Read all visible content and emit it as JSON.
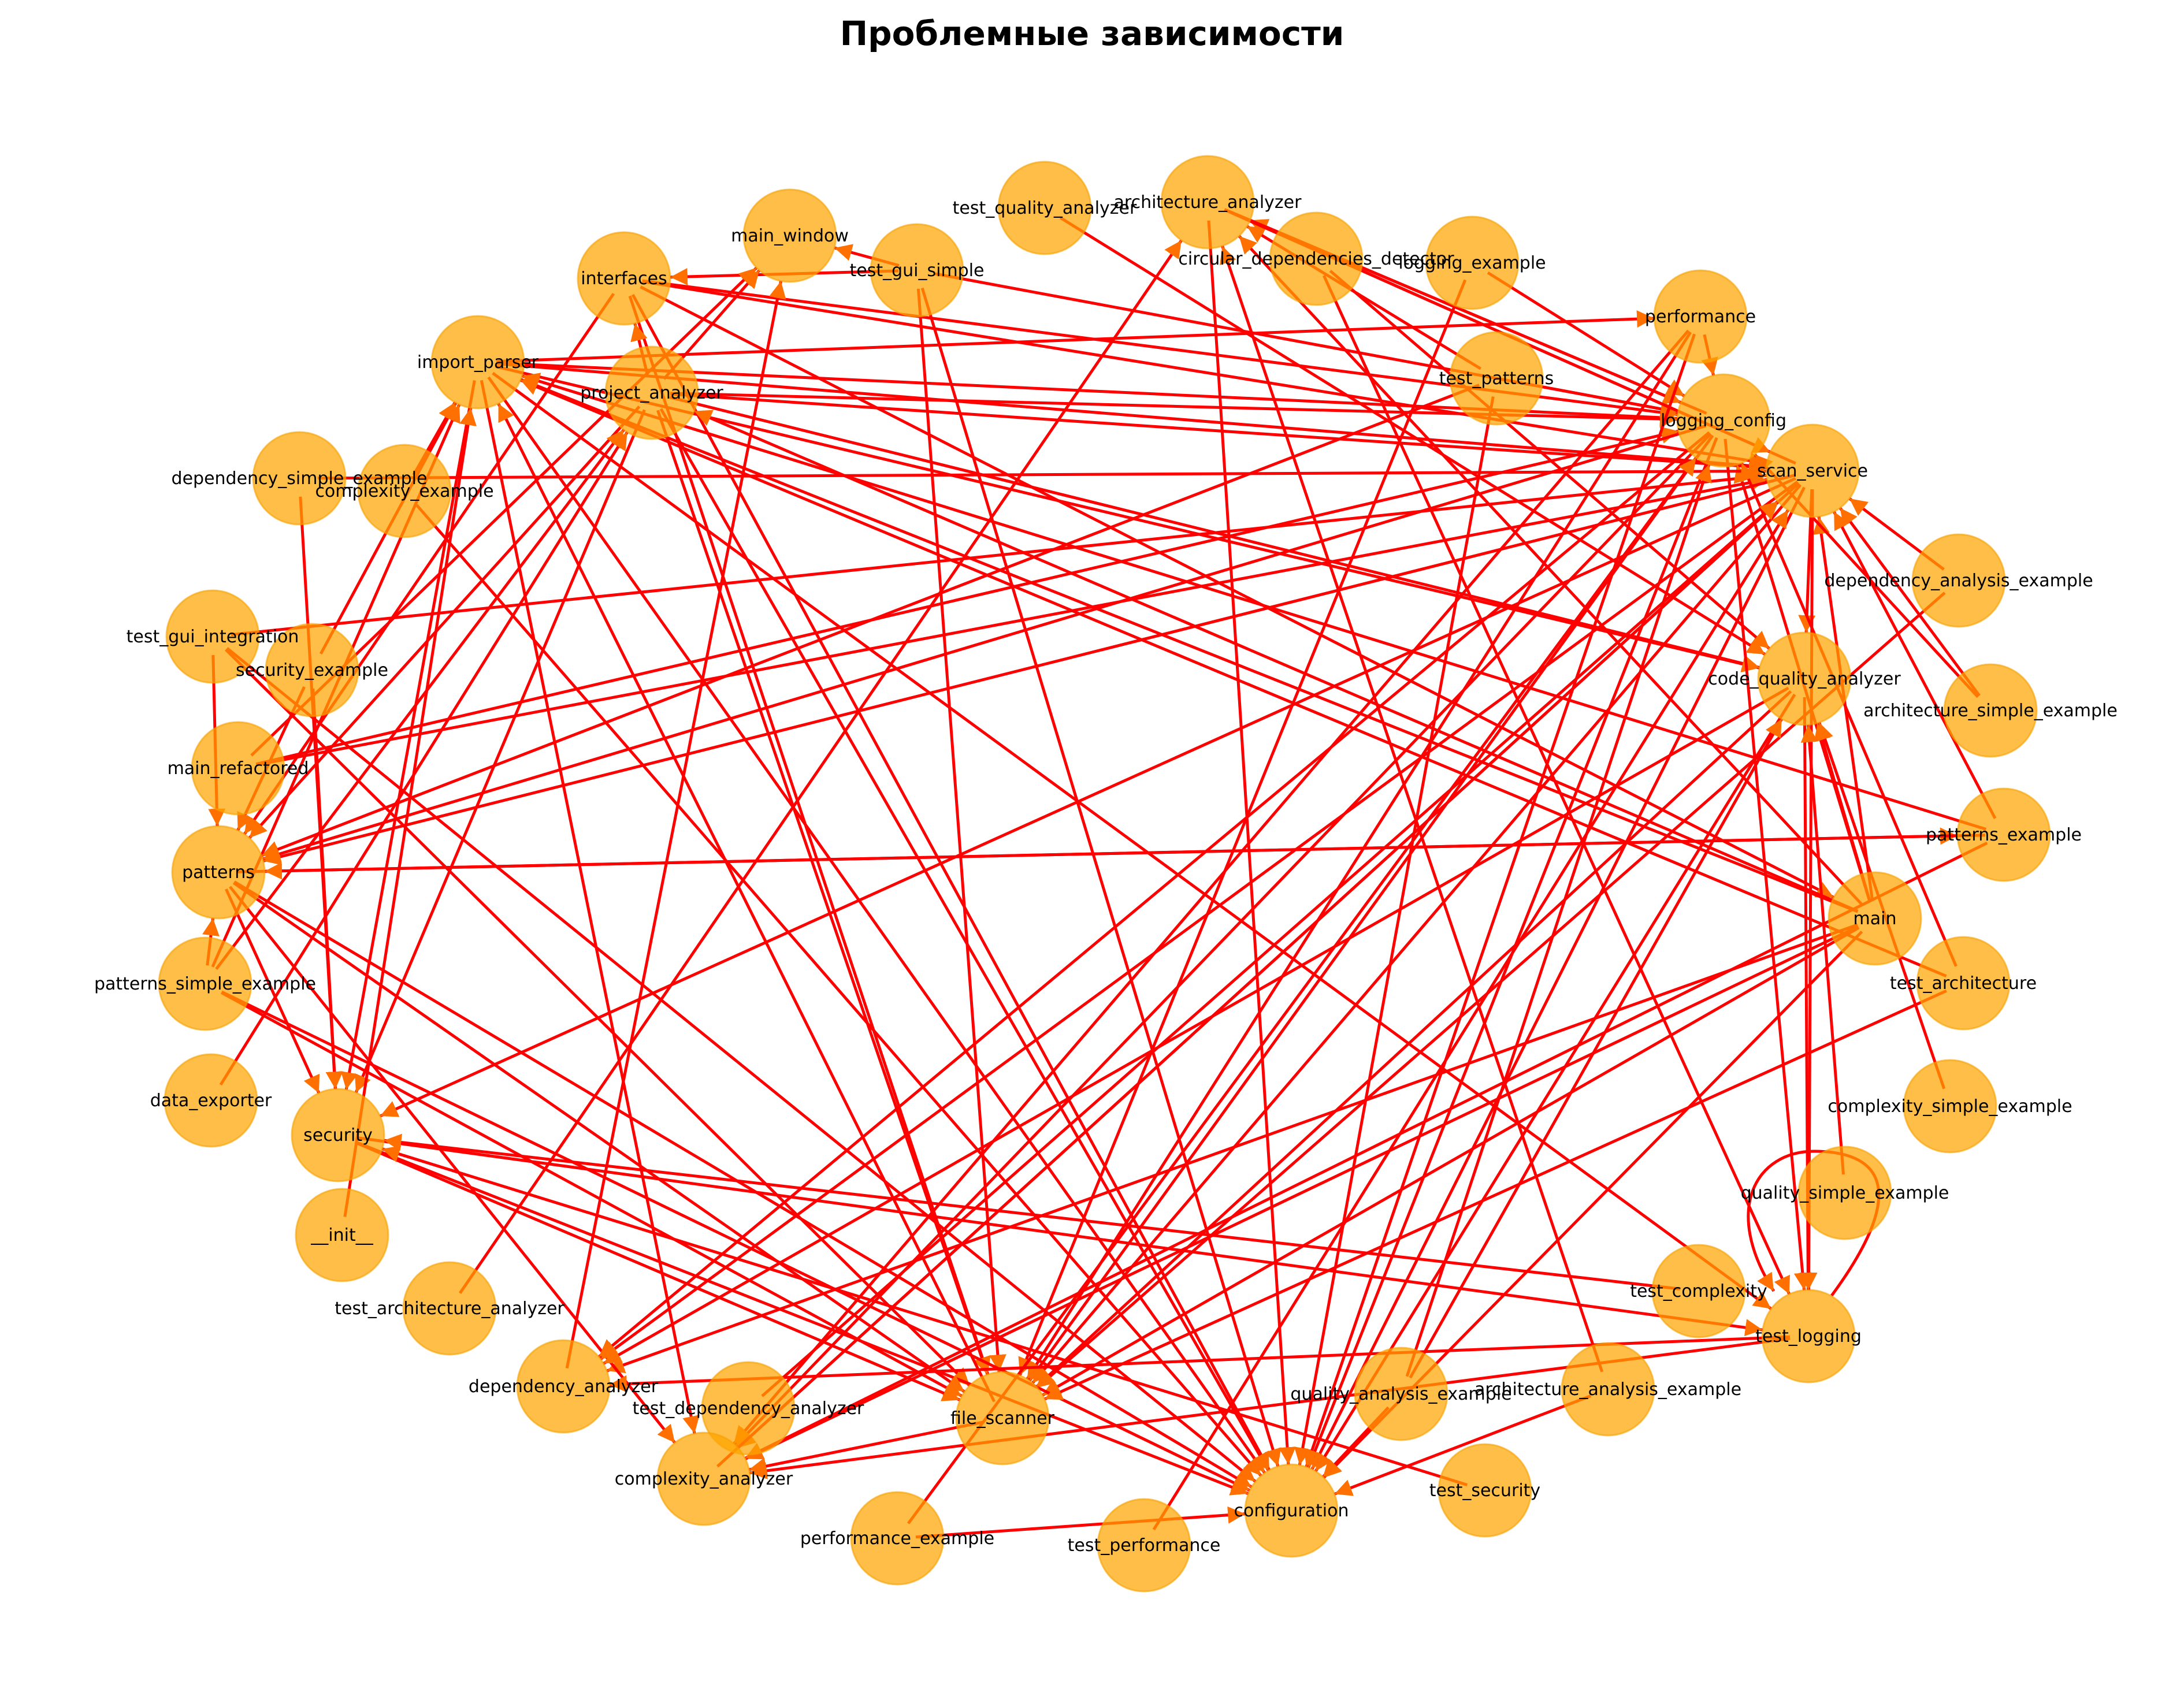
{
  "title": "Проблемные зависимости",
  "style": {
    "node_fill": "#FFA500",
    "node_stroke": "#F5A000",
    "edge_color": "#FF0000",
    "arrow_color": "#FF7000",
    "label_color": "#000000"
  },
  "nodes": [
    {
      "id": "main_window",
      "label": "main_window"
    },
    {
      "id": "test_quality_analyzer",
      "label": "test_quality_analyzer"
    },
    {
      "id": "architecture_analyzer",
      "label": "architecture_analyzer"
    },
    {
      "id": "circular_dependencies_detector",
      "label": "circular_dependencies_detector"
    },
    {
      "id": "logging_example",
      "label": "logging_example"
    },
    {
      "id": "interfaces",
      "label": "interfaces"
    },
    {
      "id": "test_gui_simple",
      "label": "test_gui_simple"
    },
    {
      "id": "performance",
      "label": "performance"
    },
    {
      "id": "import_parser",
      "label": "import_parser"
    },
    {
      "id": "project_analyzer",
      "label": "project_analyzer"
    },
    {
      "id": "test_patterns",
      "label": "test_patterns"
    },
    {
      "id": "logging_config",
      "label": "logging_config"
    },
    {
      "id": "scan_service",
      "label": "scan_service"
    },
    {
      "id": "dependency_simple_example",
      "label": "dependency_simple_example"
    },
    {
      "id": "complexity_example",
      "label": "complexity_example"
    },
    {
      "id": "dependency_analysis_example",
      "label": "dependency_analysis_example"
    },
    {
      "id": "test_gui_integration",
      "label": "test_gui_integration"
    },
    {
      "id": "security_example",
      "label": "security_example"
    },
    {
      "id": "code_quality_analyzer",
      "label": "code_quality_analyzer"
    },
    {
      "id": "architecture_simple_example",
      "label": "architecture_simple_example"
    },
    {
      "id": "main_refactored",
      "label": "main_refactored"
    },
    {
      "id": "patterns",
      "label": "patterns"
    },
    {
      "id": "patterns_example",
      "label": "patterns_example"
    },
    {
      "id": "main",
      "label": "main"
    },
    {
      "id": "patterns_simple_example",
      "label": "patterns_simple_example"
    },
    {
      "id": "test_architecture",
      "label": "test_architecture"
    },
    {
      "id": "data_exporter",
      "label": "data_exporter"
    },
    {
      "id": "security",
      "label": "security"
    },
    {
      "id": "complexity_simple_example",
      "label": "complexity_simple_example"
    },
    {
      "id": "__init__",
      "label": "__init__"
    },
    {
      "id": "quality_simple_example",
      "label": "quality_simple_example"
    },
    {
      "id": "test_architecture_analyzer",
      "label": "test_architecture_analyzer"
    },
    {
      "id": "test_complexity",
      "label": "test_complexity"
    },
    {
      "id": "test_logging",
      "label": "test_logging"
    },
    {
      "id": "dependency_analyzer",
      "label": "dependency_analyzer"
    },
    {
      "id": "test_dependency_analyzer",
      "label": "test_dependency_analyzer"
    },
    {
      "id": "quality_analysis_example",
      "label": "quality_analysis_example"
    },
    {
      "id": "architecture_analysis_example",
      "label": "architecture_analysis_example"
    },
    {
      "id": "file_scanner",
      "label": "file_scanner"
    },
    {
      "id": "complexity_analyzer",
      "label": "complexity_analyzer"
    },
    {
      "id": "test_security",
      "label": "test_security"
    },
    {
      "id": "configuration",
      "label": "configuration"
    },
    {
      "id": "performance_example",
      "label": "performance_example"
    },
    {
      "id": "test_performance",
      "label": "test_performance"
    }
  ],
  "edges": [
    [
      "test_gui_integration",
      "patterns"
    ],
    [
      "test_gui_integration",
      "scan_service"
    ],
    [
      "test_gui_integration",
      "file_scanner"
    ],
    [
      "test_gui_integration",
      "configuration"
    ],
    [
      "test_gui_simple",
      "interfaces"
    ],
    [
      "test_gui_simple",
      "main_window"
    ],
    [
      "test_gui_simple",
      "file_scanner"
    ],
    [
      "test_gui_simple",
      "configuration"
    ],
    [
      "test_gui_simple",
      "logging_config"
    ],
    [
      "import_parser",
      "performance"
    ],
    [
      "import_parser",
      "logging_config"
    ],
    [
      "import_parser",
      "scan_service"
    ],
    [
      "import_parser",
      "code_quality_analyzer"
    ],
    [
      "import_parser",
      "security"
    ],
    [
      "import_parser",
      "configuration"
    ],
    [
      "import_parser",
      "test_logging"
    ],
    [
      "import_parser",
      "complexity_analyzer"
    ],
    [
      "interfaces",
      "scan_service"
    ],
    [
      "interfaces",
      "logging_config"
    ],
    [
      "interfaces",
      "file_scanner"
    ],
    [
      "interfaces",
      "patterns"
    ],
    [
      "interfaces",
      "configuration"
    ],
    [
      "interfaces",
      "main"
    ],
    [
      "project_analyzer",
      "logging_config"
    ],
    [
      "project_analyzer",
      "scan_service"
    ],
    [
      "project_analyzer",
      "file_scanner"
    ],
    [
      "project_analyzer",
      "configuration"
    ],
    [
      "project_analyzer",
      "patterns"
    ],
    [
      "project_analyzer",
      "main_window"
    ],
    [
      "project_analyzer",
      "interfaces"
    ],
    [
      "project_analyzer",
      "security"
    ],
    [
      "project_analyzer",
      "code_quality_analyzer"
    ],
    [
      "main",
      "project_analyzer"
    ],
    [
      "main",
      "logging_config"
    ],
    [
      "main",
      "scan_service"
    ],
    [
      "main",
      "configuration"
    ],
    [
      "main",
      "file_scanner"
    ],
    [
      "main",
      "dependency_analyzer"
    ],
    [
      "main",
      "complexity_analyzer"
    ],
    [
      "main",
      "code_quality_analyzer"
    ],
    [
      "main",
      "import_parser"
    ],
    [
      "main",
      "architecture_analyzer"
    ],
    [
      "main_refactored",
      "main_window"
    ],
    [
      "main_refactored",
      "logging_config"
    ],
    [
      "main_refactored",
      "scan_service"
    ],
    [
      "security_example",
      "security"
    ],
    [
      "security_example",
      "patterns"
    ],
    [
      "security_example",
      "import_parser"
    ],
    [
      "dependency_simple_example",
      "scan_service"
    ],
    [
      "dependency_simple_example",
      "security"
    ],
    [
      "complexity_example",
      "import_parser"
    ],
    [
      "complexity_example",
      "configuration"
    ],
    [
      "patterns_simple_example",
      "patterns"
    ],
    [
      "patterns_simple_example",
      "file_scanner"
    ],
    [
      "patterns_simple_example",
      "configuration"
    ],
    [
      "patterns_simple_example",
      "import_parser"
    ],
    [
      "patterns_simple_example",
      "project_analyzer"
    ],
    [
      "data_exporter",
      "project_analyzer"
    ],
    [
      "__init__",
      "import_parser"
    ],
    [
      "security",
      "file_scanner"
    ],
    [
      "security",
      "configuration"
    ],
    [
      "security",
      "test_logging"
    ],
    [
      "patterns",
      "security"
    ],
    [
      "patterns",
      "patterns_example"
    ],
    [
      "patterns",
      "configuration"
    ],
    [
      "patterns",
      "complexity_analyzer"
    ],
    [
      "patterns",
      "file_scanner"
    ],
    [
      "scan_service",
      "patterns"
    ],
    [
      "scan_service",
      "dependency_analyzer"
    ],
    [
      "scan_service",
      "complexity_analyzer"
    ],
    [
      "scan_service",
      "code_quality_analyzer"
    ],
    [
      "scan_service",
      "configuration"
    ],
    [
      "scan_service",
      "file_scanner"
    ],
    [
      "scan_service",
      "architecture_analyzer"
    ],
    [
      "scan_service",
      "security"
    ],
    [
      "scan_service",
      "test_logging"
    ],
    [
      "logging_config",
      "configuration"
    ],
    [
      "logging_config",
      "file_scanner"
    ],
    [
      "logging_config",
      "patterns"
    ],
    [
      "logging_config",
      "dependency_analyzer"
    ],
    [
      "logging_config",
      "complexity_analyzer"
    ],
    [
      "logging_config",
      "test_logging"
    ],
    [
      "logging_config",
      "architecture_analyzer"
    ],
    [
      "test_patterns",
      "patterns"
    ],
    [
      "test_patterns",
      "configuration"
    ],
    [
      "test_patterns",
      "logging_config"
    ],
    [
      "test_patterns",
      "architecture_analyzer"
    ],
    [
      "logging_example",
      "logging_config"
    ],
    [
      "logging_example",
      "file_scanner"
    ],
    [
      "circular_dependencies_detector",
      "code_quality_analyzer"
    ],
    [
      "circular_dependencies_detector",
      "test_logging"
    ],
    [
      "architecture_analyzer",
      "configuration"
    ],
    [
      "architecture_analyzer",
      "logging_config"
    ],
    [
      "architecture_analyzer",
      "scan_service"
    ],
    [
      "test_quality_analyzer",
      "code_quality_analyzer"
    ],
    [
      "performance",
      "logging_config"
    ],
    [
      "performance",
      "file_scanner"
    ],
    [
      "performance",
      "configuration"
    ],
    [
      "performance",
      "complexity_analyzer"
    ],
    [
      "dependency_analysis_example",
      "scan_service"
    ],
    [
      "dependency_analysis_example",
      "file_scanner"
    ],
    [
      "architecture_simple_example",
      "scan_service"
    ],
    [
      "architecture_simple_example",
      "logging_config"
    ],
    [
      "patterns_example",
      "patterns"
    ],
    [
      "patterns_example",
      "scan_service"
    ],
    [
      "patterns_example",
      "import_parser"
    ],
    [
      "patterns_example",
      "complexity_analyzer"
    ],
    [
      "test_architecture",
      "logging_config"
    ],
    [
      "test_architecture",
      "import_parser"
    ],
    [
      "test_architecture",
      "file_scanner"
    ],
    [
      "code_quality_analyzer",
      "configuration"
    ],
    [
      "code_quality_analyzer",
      "dependency_analyzer"
    ],
    [
      "code_quality_analyzer",
      "test_logging"
    ],
    [
      "code_quality_analyzer",
      "file_scanner"
    ],
    [
      "complexity_simple_example",
      "code_quality_analyzer"
    ],
    [
      "quality_simple_example",
      "code_quality_analyzer"
    ],
    [
      "test_complexity",
      "security"
    ],
    [
      "quality_analysis_example",
      "code_quality_analyzer"
    ],
    [
      "quality_analysis_example",
      "configuration"
    ],
    [
      "quality_analysis_example",
      "logging_config"
    ],
    [
      "architecture_analysis_example",
      "architecture_analyzer"
    ],
    [
      "architecture_analysis_example",
      "configuration"
    ],
    [
      "test_logging",
      "complexity_analyzer"
    ],
    [
      "test_logging",
      "dependency_analyzer"
    ],
    [
      "test_logging",
      "test_logging"
    ],
    [
      "complexity_analyzer",
      "scan_service"
    ],
    [
      "dependency_analyzer",
      "main_window"
    ],
    [
      "test_dependency_analyzer",
      "scan_service"
    ],
    [
      "test_architecture_analyzer",
      "architecture_analyzer"
    ],
    [
      "file_scanner",
      "import_parser"
    ],
    [
      "file_scanner",
      "complexity_analyzer"
    ],
    [
      "performance_example",
      "configuration"
    ],
    [
      "performance_example",
      "logging_config"
    ],
    [
      "test_performance",
      "scan_service"
    ],
    [
      "test_security",
      "security"
    ]
  ]
}
